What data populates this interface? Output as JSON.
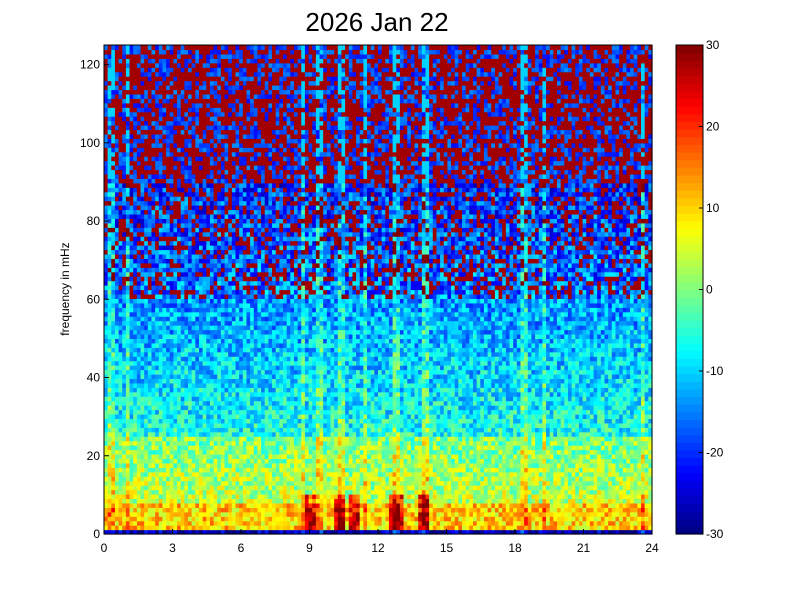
{
  "chart_data": {
    "type": "heatmap",
    "title": "2026 Jan 22",
    "xlabel": "",
    "ylabel": "frequency in mHz",
    "xlim": [
      0,
      24
    ],
    "ylim": [
      0,
      125
    ],
    "x_ticks": [
      "0",
      "3",
      "6",
      "9",
      "12",
      "15",
      "18",
      "21",
      "24"
    ],
    "y_ticks": [
      "0",
      "20",
      "40",
      "60",
      "80",
      "100",
      "120"
    ],
    "colorbar": {
      "range": [
        -30,
        30
      ],
      "ticks": [
        "-30",
        "-20",
        "-10",
        "0",
        "10",
        "20",
        "30"
      ],
      "colormap": "jet"
    },
    "grid": false,
    "description_bands": [
      {
        "freq_range_mHz": [
          0,
          2
        ],
        "level_dB": -28
      },
      {
        "freq_range_mHz": [
          2,
          8
        ],
        "level_dB": 12
      },
      {
        "freq_range_mHz": [
          8,
          25
        ],
        "level_dB": 0
      },
      {
        "freq_range_mHz": [
          25,
          60
        ],
        "level_dB": -10
      },
      {
        "freq_range_mHz": [
          60,
          90
        ],
        "level_dB": -20
      },
      {
        "freq_range_mHz": [
          90,
          125
        ],
        "level_dB": 28
      }
    ],
    "vertical_streaks_hours": [
      0.3,
      1.0,
      8.7,
      9.4,
      10.4,
      11.4,
      12.8,
      14.1,
      18.4,
      19.3,
      23.6
    ],
    "intense_events_hours": [
      9.0,
      10.3,
      10.9,
      12.8,
      14.0
    ]
  }
}
